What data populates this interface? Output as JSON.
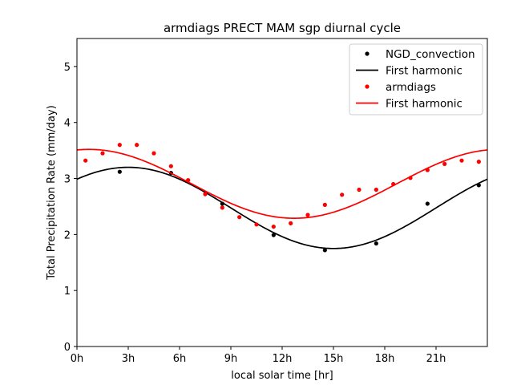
{
  "chart_data": {
    "type": "scatter",
    "title": "armdiags PRECT MAM sgp diurnal cycle",
    "xlabel": "local solar time [hr]",
    "ylabel": "Total Precipitation Rate (mm/day)",
    "xlim": [
      0,
      24
    ],
    "ylim": [
      0,
      5.5
    ],
    "x_ticks": [
      0,
      3,
      6,
      9,
      12,
      15,
      18,
      21
    ],
    "x_tick_labels": [
      "0h",
      "3h",
      "6h",
      "9h",
      "12h",
      "15h",
      "18h",
      "21h"
    ],
    "y_ticks": [
      0,
      1,
      2,
      3,
      4,
      5
    ],
    "y_tick_labels": [
      "0",
      "1",
      "2",
      "3",
      "4",
      "5"
    ],
    "legend_position": "top-right",
    "series": [
      {
        "name": "NGD_convection",
        "kind": "points",
        "color": "#000000",
        "x": [
          2.5,
          5.5,
          8.5,
          11.5,
          14.5,
          17.5,
          20.5,
          23.5
        ],
        "y": [
          3.12,
          3.1,
          2.55,
          1.99,
          1.72,
          1.84,
          2.55,
          2.88
        ]
      },
      {
        "name": "First harmonic",
        "kind": "line",
        "color": "#000000",
        "mean": 2.475,
        "amplitude": 0.725,
        "phase_hour": 3.0
      },
      {
        "name": "armdiags",
        "kind": "points",
        "color": "#ff0000",
        "x": [
          0.5,
          1.5,
          2.5,
          3.5,
          4.5,
          5.5,
          6.5,
          7.5,
          8.5,
          9.5,
          10.5,
          11.5,
          12.5,
          13.5,
          14.5,
          15.5,
          16.5,
          17.5,
          18.5,
          19.5,
          20.5,
          21.5,
          22.5,
          23.5
        ],
        "y": [
          3.32,
          3.45,
          3.6,
          3.6,
          3.45,
          3.22,
          2.97,
          2.72,
          2.48,
          2.31,
          2.18,
          2.14,
          2.2,
          2.35,
          2.53,
          2.71,
          2.8,
          2.8,
          2.9,
          3.01,
          3.15,
          3.26,
          3.32,
          3.3
        ]
      },
      {
        "name": "First harmonic",
        "kind": "line",
        "color": "#ff0000",
        "mean": 2.905,
        "amplitude": 0.615,
        "phase_hour": 0.7
      }
    ]
  }
}
